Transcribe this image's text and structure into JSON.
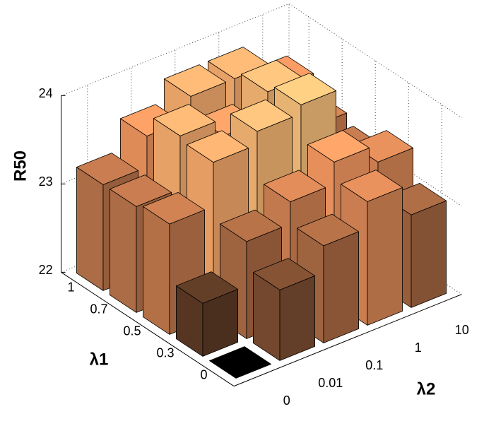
{
  "chart_data": {
    "type": "bar3",
    "xlabel": "λ2",
    "ylabel": "λ1",
    "zlabel": "R50",
    "x_categories": [
      "0",
      "0.01",
      "0.1",
      "1",
      "10"
    ],
    "y_categories": [
      "0",
      "0.3",
      "0.5",
      "0.7",
      "1"
    ],
    "values": [
      [
        22.0,
        22.8,
        23.1,
        23.4,
        23.05
      ],
      [
        22.6,
        23.1,
        23.35,
        23.6,
        23.4
      ],
      [
        23.25,
        23.75,
        23.9,
        24.0,
        23.2
      ],
      [
        23.2,
        23.8,
        23.6,
        23.9,
        23.3
      ],
      [
        23.2,
        23.55,
        23.8,
        23.8,
        23.5
      ]
    ],
    "zlim": [
      22,
      24
    ],
    "zticks": [
      22,
      23,
      24
    ],
    "colormap": "copper",
    "grid": true
  }
}
